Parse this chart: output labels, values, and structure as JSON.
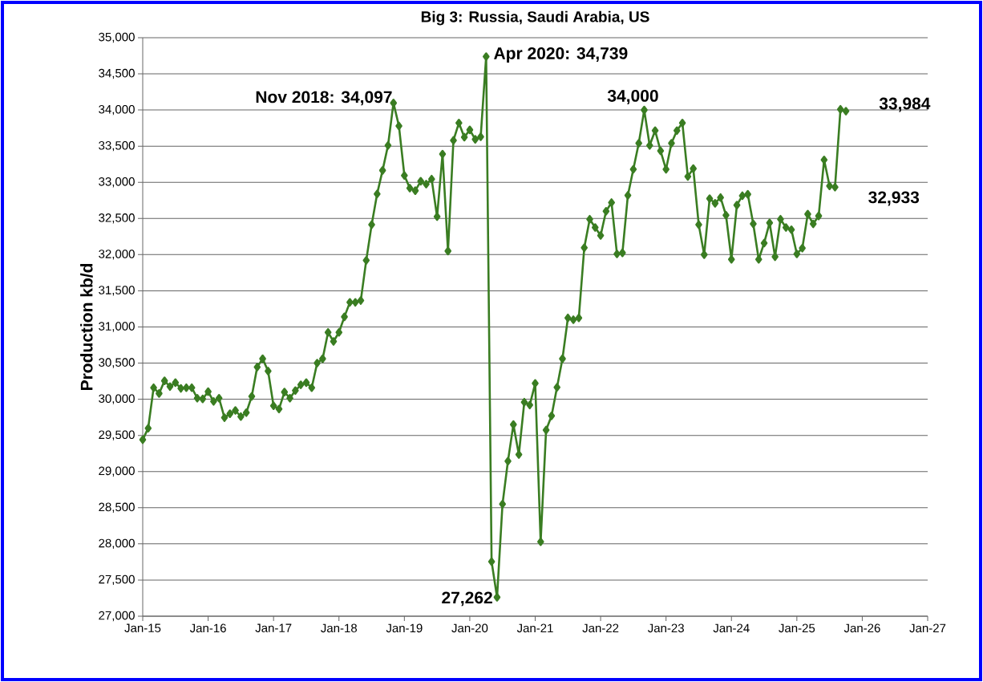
{
  "chart_data": {
    "type": "line",
    "title": "Big 3: Russia, Saudi Arabia, US",
    "ylabel": "Production kb/d",
    "x": [
      "2015-01",
      "2015-02",
      "2015-03",
      "2015-04",
      "2015-05",
      "2015-06",
      "2015-07",
      "2015-08",
      "2015-09",
      "2015-10",
      "2015-11",
      "2015-12",
      "2016-01",
      "2016-02",
      "2016-03",
      "2016-04",
      "2016-05",
      "2016-06",
      "2016-07",
      "2016-08",
      "2016-09",
      "2016-10",
      "2016-11",
      "2016-12",
      "2017-01",
      "2017-02",
      "2017-03",
      "2017-04",
      "2017-05",
      "2017-06",
      "2017-07",
      "2017-08",
      "2017-09",
      "2017-10",
      "2017-11",
      "2017-12",
      "2018-01",
      "2018-02",
      "2018-03",
      "2018-04",
      "2018-05",
      "2018-06",
      "2018-07",
      "2018-08",
      "2018-09",
      "2018-10",
      "2018-11",
      "2018-12",
      "2019-01",
      "2019-02",
      "2019-03",
      "2019-04",
      "2019-05",
      "2019-06",
      "2019-07",
      "2019-08",
      "2019-09",
      "2019-10",
      "2019-11",
      "2019-12",
      "2020-01",
      "2020-02",
      "2020-03",
      "2020-04",
      "2020-05",
      "2020-06",
      "2020-07",
      "2020-08",
      "2020-09",
      "2020-10",
      "2020-11",
      "2020-12",
      "2021-01",
      "2021-02",
      "2021-03",
      "2021-04",
      "2021-05",
      "2021-06",
      "2021-07",
      "2021-08",
      "2021-09",
      "2021-10",
      "2021-11",
      "2021-12",
      "2022-01",
      "2022-02",
      "2022-03",
      "2022-04",
      "2022-05",
      "2022-06",
      "2022-07",
      "2022-08",
      "2022-09",
      "2022-10",
      "2022-11",
      "2022-12",
      "2023-01",
      "2023-02",
      "2023-03",
      "2023-04",
      "2023-05",
      "2023-06",
      "2023-07",
      "2023-08",
      "2023-09",
      "2023-10",
      "2023-11",
      "2023-12",
      "2024-01",
      "2024-02",
      "2024-03",
      "2024-04",
      "2024-05",
      "2024-06",
      "2024-07",
      "2024-08",
      "2024-09",
      "2024-10",
      "2024-11",
      "2024-12",
      "2025-01",
      "2025-02",
      "2025-03",
      "2025-04",
      "2025-05",
      "2025-06",
      "2025-07",
      "2025-08",
      "2025-09",
      "2025-10"
    ],
    "series": [
      {
        "color": "#3a7d22",
        "values": [
          29440,
          29600,
          30160,
          30080,
          30255,
          30175,
          30230,
          30150,
          30160,
          30160,
          30015,
          30005,
          30105,
          29970,
          30015,
          29745,
          29800,
          29845,
          29760,
          29815,
          30040,
          30445,
          30560,
          30390,
          29910,
          29865,
          30100,
          30015,
          30120,
          30200,
          30230,
          30160,
          30500,
          30560,
          30925,
          30800,
          30925,
          31140,
          31340,
          31340,
          31365,
          31920,
          32415,
          32840,
          33165,
          33510,
          34097,
          33780,
          33095,
          32920,
          32885,
          33015,
          32975,
          33045,
          32525,
          33390,
          32050,
          33580,
          33820,
          33625,
          33725,
          33595,
          33630,
          34739,
          27755,
          27262,
          28550,
          29145,
          29650,
          29235,
          29960,
          29920,
          30220,
          28030,
          29575,
          29770,
          30165,
          30560,
          31125,
          31100,
          31125,
          32095,
          32490,
          32375,
          32265,
          32600,
          32720,
          32010,
          32025,
          32820,
          33180,
          33540,
          34000,
          33510,
          33715,
          33435,
          33180,
          33540,
          33715,
          33820,
          33080,
          33190,
          32415,
          32000,
          32775,
          32710,
          32790,
          32545,
          31935,
          32685,
          32815,
          32835,
          32425,
          31935,
          32160,
          32440,
          31970,
          32490,
          32375,
          32345,
          32010,
          32090,
          32560,
          32425,
          32535,
          33310,
          32950,
          32933,
          34010,
          33984
        ]
      }
    ],
    "xlim": [
      "2015-01",
      "2027-01"
    ],
    "xticks": [
      {
        "value": "2015-01",
        "label": "Jan-15"
      },
      {
        "value": "2016-01",
        "label": "Jan-16"
      },
      {
        "value": "2017-01",
        "label": "Jan-17"
      },
      {
        "value": "2018-01",
        "label": "Jan-18"
      },
      {
        "value": "2019-01",
        "label": "Jan-19"
      },
      {
        "value": "2020-01",
        "label": "Jan-20"
      },
      {
        "value": "2021-01",
        "label": "Jan-21"
      },
      {
        "value": "2022-01",
        "label": "Jan-22"
      },
      {
        "value": "2023-01",
        "label": "Jan-23"
      },
      {
        "value": "2024-01",
        "label": "Jan-24"
      },
      {
        "value": "2025-01",
        "label": "Jan-25"
      },
      {
        "value": "2026-01",
        "label": "Jan-26"
      },
      {
        "value": "2027-01",
        "label": "Jan-27"
      }
    ],
    "ylim": [
      27000,
      35000
    ],
    "yticks": [
      {
        "value": 27000,
        "label": "27,000"
      },
      {
        "value": 27500,
        "label": "27,500"
      },
      {
        "value": 28000,
        "label": "28,000"
      },
      {
        "value": 28500,
        "label": "28,500"
      },
      {
        "value": 29000,
        "label": "29,000"
      },
      {
        "value": 29500,
        "label": "29,500"
      },
      {
        "value": 30000,
        "label": "30,000"
      },
      {
        "value": 30500,
        "label": "30,500"
      },
      {
        "value": 31000,
        "label": "31,000"
      },
      {
        "value": 31500,
        "label": "31,500"
      },
      {
        "value": 32000,
        "label": "32,000"
      },
      {
        "value": 32500,
        "label": "32,500"
      },
      {
        "value": 33000,
        "label": "33,000"
      },
      {
        "value": 33500,
        "label": "33,500"
      },
      {
        "value": 34000,
        "label": "34,000"
      },
      {
        "value": 34500,
        "label": "34,500"
      },
      {
        "value": 35000,
        "label": "35,000"
      }
    ],
    "annotations": [
      {
        "text": "Nov 2018: 34,097",
        "x": "2018-11",
        "y": 34097
      },
      {
        "text": "Apr 2020: 34,739",
        "x": "2020-04",
        "y": 34739
      },
      {
        "text": "27,262",
        "x": "2020-06",
        "y": 27262
      },
      {
        "text": "34,000",
        "x": "2022-09",
        "y": 34000
      },
      {
        "text": "32,933",
        "x": "2025-08",
        "y": 32933
      },
      {
        "text": "33,984",
        "x": "2025-10",
        "y": 33984
      }
    ],
    "grid": "y",
    "marker": "diamond",
    "line_style": "solid"
  }
}
